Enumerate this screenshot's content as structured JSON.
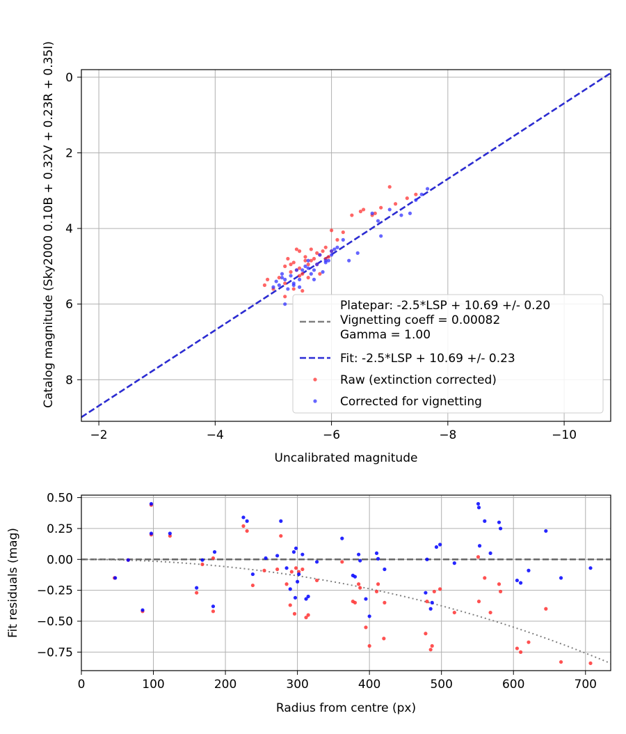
{
  "chart_data": [
    {
      "type": "scatter",
      "xlabel": "Uncalibrated magnitude",
      "ylabel": "Catalog magnitude (Sky2000 0.10B + 0.32V + 0.23R + 0.35I)",
      "xlim": [
        -1.7,
        -10.8
      ],
      "ylim": [
        9.1,
        -0.2
      ],
      "xticks": [
        -2,
        -4,
        -6,
        -8,
        -10
      ],
      "xtick_labels": [
        "−2",
        "−4",
        "−6",
        "−8",
        "−10"
      ],
      "yticks": [
        0,
        2,
        4,
        6,
        8
      ],
      "ytick_labels": [
        "0",
        "2",
        "4",
        "6",
        "8"
      ],
      "grid": true,
      "legend_position": "lower-right",
      "legend": {
        "platepar_lines": [
          "Platepar: -2.5*LSP + 10.69 +/- 0.20",
          "Vignetting coeff = 0.00082",
          "Gamma = 1.00"
        ],
        "fit_label": "Fit: -2.5*LSP + 10.69 +/- 0.23",
        "raw_label": "Raw (extinction corrected)",
        "corrected_label": "Corrected for vignetting"
      },
      "lines": [
        {
          "name": "Platepar: -2.5*LSP + 10.69 +/- 0.20",
          "style": "dashed",
          "color": "#7f7f7f",
          "x": [
            -1.7,
            -10.8
          ],
          "y": [
            8.99,
            -0.11
          ]
        },
        {
          "name": "Fit: -2.5*LSP + 10.69 +/- 0.23",
          "style": "dashed",
          "color": "#2b2bd6",
          "x": [
            -1.7,
            -10.8
          ],
          "y": [
            8.99,
            -0.11
          ]
        }
      ],
      "series": [
        {
          "name": "Raw (extinction corrected)",
          "color": "#ff3333",
          "x": [
            -4.85,
            -4.9,
            -5.0,
            -5.1,
            -5.2,
            -5.2,
            -5.25,
            -5.3,
            -5.35,
            -5.4,
            -5.4,
            -5.45,
            -5.5,
            -5.5,
            -5.55,
            -5.6,
            -5.65,
            -5.7,
            -5.75,
            -5.8,
            -5.85,
            -5.9,
            -5.95,
            -6.0,
            -6.0,
            -6.1,
            -6.2,
            -6.35,
            -6.5,
            -6.55,
            -6.7,
            -6.75,
            -6.85,
            -7.0,
            -7.1,
            -7.3,
            -7.45,
            -5.35,
            -5.45,
            -5.55,
            -5.6,
            -5.75,
            -5.8,
            -5.2,
            -5.3,
            -5.45,
            -5.65,
            -5.9
          ],
          "y": [
            5.5,
            5.35,
            5.6,
            5.3,
            5.0,
            5.45,
            4.8,
            5.15,
            5.6,
            4.55,
            5.1,
            4.6,
            5.2,
            5.65,
            4.75,
            5.3,
            4.55,
            4.8,
            4.95,
            4.7,
            4.6,
            4.5,
            4.75,
            4.05,
            4.6,
            4.3,
            4.1,
            3.65,
            3.55,
            3.5,
            3.65,
            3.6,
            3.45,
            2.9,
            3.35,
            3.2,
            3.1,
            4.9,
            5.05,
            4.85,
            4.95,
            4.65,
            5.2,
            5.8,
            4.95,
            5.25,
            4.85,
            4.8
          ]
        },
        {
          "name": "Corrected for vignetting",
          "color": "#3333ff",
          "x": [
            -5.05,
            -5.1,
            -5.15,
            -5.2,
            -5.25,
            -5.3,
            -5.35,
            -5.4,
            -5.45,
            -5.5,
            -5.55,
            -5.6,
            -5.65,
            -5.7,
            -5.75,
            -5.8,
            -5.85,
            -5.9,
            -5.95,
            -6.0,
            -6.05,
            -6.1,
            -6.2,
            -6.3,
            -6.45,
            -6.7,
            -6.8,
            -6.85,
            -7.0,
            -7.2,
            -7.35,
            -7.45,
            -7.55,
            -7.65,
            -5.0,
            -5.2,
            -5.45,
            -5.6,
            -5.7,
            -5.9,
            -6.0,
            -5.15,
            -5.35
          ],
          "y": [
            5.4,
            5.5,
            5.3,
            6.0,
            5.6,
            5.25,
            5.5,
            5.1,
            5.35,
            5.1,
            5.0,
            4.85,
            5.2,
            5.35,
            4.95,
            4.7,
            5.15,
            4.9,
            4.85,
            4.6,
            4.55,
            4.5,
            4.3,
            4.85,
            4.65,
            3.6,
            3.8,
            4.2,
            3.5,
            3.65,
            3.6,
            3.25,
            3.1,
            2.95,
            5.55,
            5.35,
            5.55,
            5.05,
            5.1,
            4.85,
            4.7,
            5.2,
            5.45
          ]
        }
      ]
    },
    {
      "type": "scatter",
      "xlabel": "Radius from centre (px)",
      "ylabel": "Fit residuals (mag)",
      "xlim": [
        0,
        735
      ],
      "ylim": [
        -0.9,
        0.52
      ],
      "xticks": [
        0,
        100,
        200,
        300,
        400,
        500,
        600,
        700
      ],
      "xtick_labels": [
        "0",
        "100",
        "200",
        "300",
        "400",
        "500",
        "600",
        "700"
      ],
      "yticks": [
        0.5,
        0.25,
        0,
        -0.25,
        -0.5,
        -0.75
      ],
      "ytick_labels": [
        "0.50",
        "0.25",
        "0.00",
        "−0.25",
        "−0.50",
        "−0.75"
      ],
      "grid": true,
      "curve": {
        "style": "dotted",
        "color": "#7f7f7f",
        "coeff": 0.00082,
        "type": "vignetting"
      },
      "zero_line": {
        "style": "dashed",
        "color": "#666666",
        "y": 0
      },
      "series": [
        {
          "name": "Raw (extinction corrected)",
          "color": "#ff3333",
          "x": [
            46,
            65,
            85,
            97,
            97,
            123,
            160,
            168,
            183,
            183,
            225,
            230,
            238,
            254,
            272,
            277,
            285,
            290,
            292,
            296,
            298,
            302,
            307,
            312,
            315,
            327,
            362,
            377,
            380,
            385,
            387,
            395,
            400,
            410,
            412,
            420,
            421,
            478,
            480,
            485,
            487,
            490,
            498,
            518,
            551,
            552,
            560,
            568,
            580,
            582,
            605,
            610,
            621,
            645,
            666,
            707
          ],
          "y": [
            -0.15,
            -0.005,
            -0.42,
            0.2,
            0.44,
            0.19,
            -0.27,
            -0.04,
            -0.42,
            0.01,
            0.27,
            0.23,
            -0.21,
            -0.09,
            -0.08,
            0.19,
            -0.2,
            -0.37,
            -0.1,
            -0.44,
            -0.07,
            -0.1,
            -0.08,
            -0.47,
            -0.45,
            -0.17,
            -0.02,
            -0.34,
            -0.35,
            -0.2,
            -0.23,
            -0.55,
            -0.7,
            -0.26,
            -0.2,
            -0.64,
            -0.35,
            -0.6,
            -0.34,
            -0.73,
            -0.7,
            -0.26,
            -0.24,
            -0.43,
            0.02,
            -0.34,
            -0.15,
            -0.43,
            -0.2,
            -0.26,
            -0.72,
            -0.75,
            -0.67,
            -0.4,
            -0.83,
            -0.84
          ]
        },
        {
          "name": "Corrected for vignetting",
          "color": "#0000ff",
          "x": [
            47,
            65,
            85,
            97,
            97,
            123,
            160,
            168,
            183,
            185,
            225,
            230,
            238,
            256,
            272,
            277,
            285,
            290,
            295,
            297,
            298,
            300,
            302,
            307,
            312,
            315,
            327,
            362,
            377,
            380,
            385,
            387,
            395,
            400,
            410,
            412,
            421,
            478,
            480,
            485,
            487,
            493,
            498,
            518,
            551,
            552,
            553,
            560,
            568,
            580,
            582,
            605,
            610,
            621,
            645,
            666,
            707
          ],
          "y": [
            -0.15,
            -0.005,
            -0.41,
            0.21,
            0.45,
            0.21,
            -0.23,
            -0.005,
            -0.38,
            0.06,
            0.34,
            0.31,
            -0.12,
            0.01,
            0.03,
            0.31,
            -0.07,
            -0.24,
            0.06,
            -0.31,
            0.09,
            -0.18,
            -0.12,
            0.04,
            -0.32,
            -0.3,
            -0.02,
            0.17,
            -0.13,
            -0.14,
            0.04,
            -0.01,
            -0.32,
            -0.46,
            0.05,
            0.005,
            -0.08,
            -0.27,
            0.0,
            -0.4,
            -0.35,
            0.1,
            0.12,
            -0.03,
            0.45,
            0.42,
            0.11,
            0.31,
            0.05,
            0.3,
            0.25,
            -0.17,
            -0.19,
            -0.09,
            0.23,
            -0.15,
            -0.07
          ]
        }
      ]
    }
  ]
}
